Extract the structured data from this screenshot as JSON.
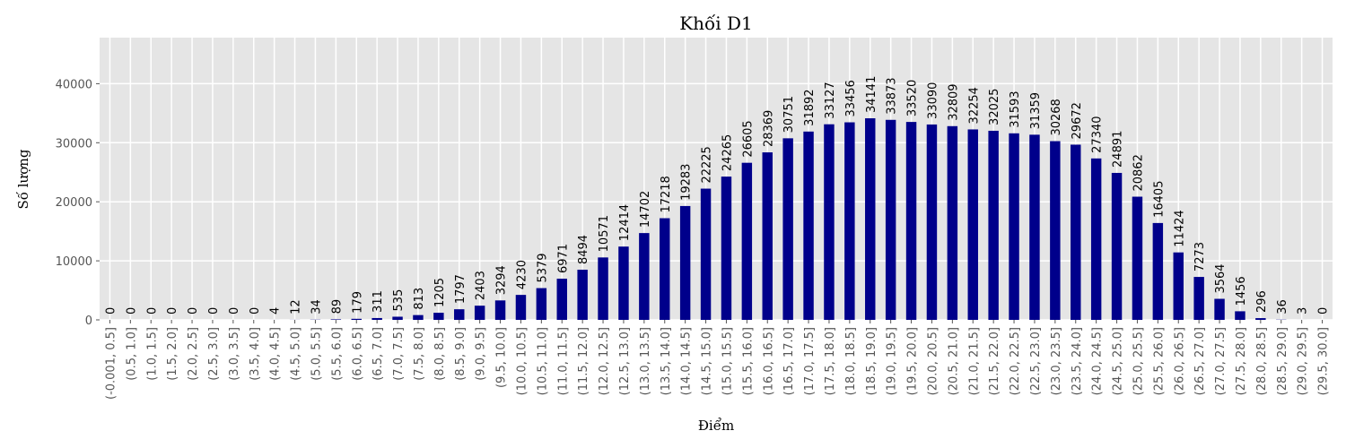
{
  "chart_data": {
    "type": "bar",
    "title": "Khối D1",
    "x_label": "Điểm",
    "y_label": "Số lượng",
    "categories": [
      "(-0.001, 0.5]",
      "(0.5, 1.0]",
      "(1.0, 1.5]",
      "(1.5, 2.0]",
      "(2.0, 2.5]",
      "(2.5, 3.0]",
      "(3.0, 3.5]",
      "(3.5, 4.0]",
      "(4.0, 4.5]",
      "(4.5, 5.0]",
      "(5.0, 5.5]",
      "(5.5, 6.0]",
      "(6.0, 6.5]",
      "(6.5, 7.0]",
      "(7.0, 7.5]",
      "(7.5, 8.0]",
      "(8.0, 8.5]",
      "(8.5, 9.0]",
      "(9.0, 9.5]",
      "(9.5, 10.0]",
      "(10.0, 10.5]",
      "(10.5, 11.0]",
      "(11.0, 11.5]",
      "(11.5, 12.0]",
      "(12.0, 12.5]",
      "(12.5, 13.0]",
      "(13.0, 13.5]",
      "(13.5, 14.0]",
      "(14.0, 14.5]",
      "(14.5, 15.0]",
      "(15.0, 15.5]",
      "(15.5, 16.0]",
      "(16.0, 16.5]",
      "(16.5, 17.0]",
      "(17.0, 17.5]",
      "(17.5, 18.0]",
      "(18.0, 18.5]",
      "(18.5, 19.0]",
      "(19.0, 19.5]",
      "(19.5, 20.0]",
      "(20.0, 20.5]",
      "(20.5, 21.0]",
      "(21.0, 21.5]",
      "(21.5, 22.0]",
      "(22.0, 22.5]",
      "(22.5, 23.0]",
      "(23.0, 23.5]",
      "(23.5, 24.0]",
      "(24.0, 24.5]",
      "(24.5, 25.0]",
      "(25.0, 25.5]",
      "(25.5, 26.0]",
      "(26.0, 26.5]",
      "(26.5, 27.0]",
      "(27.0, 27.5]",
      "(27.5, 28.0]",
      "(28.0, 28.5]",
      "(28.5, 29.0]",
      "(29.0, 29.5]",
      "(29.5, 30.0]"
    ],
    "values": [
      0,
      0,
      0,
      0,
      0,
      0,
      0,
      0,
      4,
      12,
      34,
      89,
      179,
      311,
      535,
      813,
      1205,
      1797,
      2403,
      3294,
      4230,
      5379,
      6971,
      8494,
      10571,
      12414,
      14702,
      17218,
      19283,
      22225,
      24265,
      26605,
      28369,
      30751,
      31892,
      33127,
      33456,
      34141,
      33873,
      33520,
      33090,
      32809,
      32254,
      32025,
      31593,
      31359,
      30268,
      29672,
      27340,
      24891,
      20862,
      16405,
      11424,
      7273,
      3564,
      1456,
      296,
      36,
      3,
      0
    ],
    "color": "#00008b",
    "ylim": [
      0,
      47800
    ],
    "yticks": [
      0,
      10000,
      20000,
      30000,
      40000
    ],
    "grid": true
  }
}
